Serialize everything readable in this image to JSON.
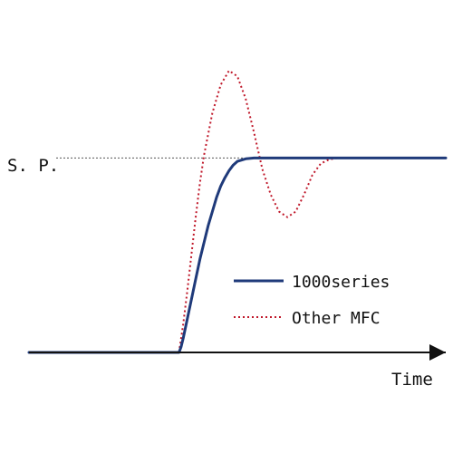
{
  "chart_data": {
    "type": "line",
    "title": "",
    "xlabel": "Time",
    "ylabel": "",
    "setpoint_label": "S. P.",
    "xlim": [
      0,
      100
    ],
    "ylim": [
      0,
      100
    ],
    "grid": false,
    "legend_position": "lower-right",
    "setpoint": {
      "value": 69,
      "line_color": "#555555",
      "line_style": "dotted"
    },
    "series": [
      {
        "name": "1000series",
        "color": "#1f3a7a",
        "style": "solid",
        "x": [
          0,
          6,
          36,
          36.5,
          37,
          38,
          39,
          40,
          41,
          42,
          43,
          44,
          45,
          46,
          47,
          48,
          49,
          50,
          52,
          54,
          56,
          62,
          70,
          80,
          100
        ],
        "y": [
          0,
          0,
          0,
          2,
          5,
          12,
          19,
          26,
          33,
          39,
          45,
          50,
          55,
          59,
          62,
          64.5,
          66.5,
          67.8,
          68.7,
          69,
          69,
          69,
          69,
          69,
          69
        ]
      },
      {
        "name": "Other MFC",
        "color": "#c0182a",
        "style": "dotted",
        "x": [
          36,
          37,
          38,
          39,
          40,
          41,
          42,
          44,
          46,
          48,
          50,
          52,
          54,
          56,
          58,
          60,
          62,
          64,
          66,
          68,
          70,
          72,
          74
        ],
        "y": [
          0,
          10,
          22,
          35,
          48,
          60,
          70,
          85,
          95,
          100,
          98,
          90,
          78,
          65,
          56,
          50,
          48,
          50,
          56,
          63,
          67,
          68.5,
          69
        ]
      }
    ]
  }
}
